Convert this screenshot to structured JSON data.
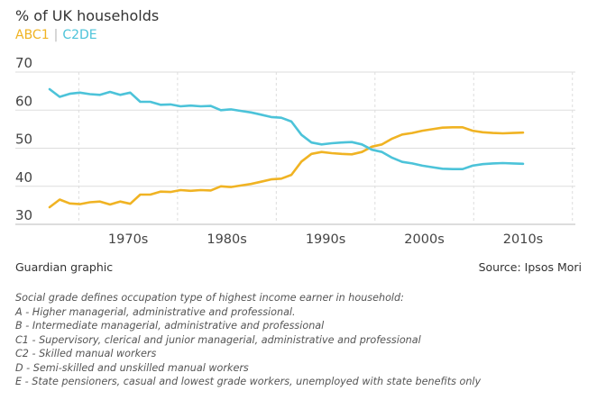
{
  "chart_data": {
    "type": "line",
    "title": "% of UK households",
    "xlabel": "",
    "ylabel": "",
    "ylim": [
      30,
      70
    ],
    "xlim": [
      1963,
      2015
    ],
    "yticks": [
      30,
      40,
      50,
      60,
      70
    ],
    "xticks": [
      {
        "label": "1970s",
        "value": 1971.8
      },
      {
        "label": "1980s",
        "value": 1981.6
      },
      {
        "label": "1990s",
        "value": 1991.4
      },
      {
        "label": "2000s",
        "value": 2001.2
      },
      {
        "label": "2010s",
        "value": 2011.0
      }
    ],
    "x_separators": [
      1966.9,
      1976.7,
      1986.5,
      1996.3,
      2006.1,
      2015.9
    ],
    "grid": true,
    "legend_placement": "top-left",
    "series": [
      {
        "name": "ABC1",
        "color": "#f0b323",
        "x": [
          1964,
          1965,
          1966,
          1967,
          1968,
          1969,
          1970,
          1971,
          1972,
          1973,
          1974,
          1975,
          1976,
          1977,
          1978,
          1979,
          1980,
          1981,
          1982,
          1983,
          1984,
          1985,
          1986,
          1987,
          1988,
          1989,
          1990,
          1991,
          1992,
          1993,
          1994,
          1995,
          1996,
          1997,
          1998,
          1999,
          2000,
          2001,
          2002,
          2003,
          2004,
          2005,
          2006,
          2007,
          2008,
          2009,
          2010,
          2011
        ],
        "y": [
          34.5,
          36.5,
          35.5,
          35.3,
          35.8,
          36.0,
          35.2,
          36.0,
          35.4,
          37.8,
          37.8,
          38.6,
          38.5,
          39.0,
          38.8,
          39.0,
          38.9,
          40.0,
          39.8,
          40.2,
          40.6,
          41.2,
          41.8,
          42.0,
          43.0,
          46.5,
          48.5,
          49.0,
          48.7,
          48.5,
          48.4,
          49.0,
          50.4,
          51.0,
          52.5,
          53.6,
          54.0,
          54.6,
          55.0,
          55.4,
          55.5,
          55.5,
          54.6,
          54.2,
          54.0,
          53.9,
          54.0,
          54.1
        ]
      },
      {
        "name": "C2DE",
        "color": "#4cc3d9",
        "x": [
          1964,
          1965,
          1966,
          1967,
          1968,
          1969,
          1970,
          1971,
          1972,
          1973,
          1974,
          1975,
          1976,
          1977,
          1978,
          1979,
          1980,
          1981,
          1982,
          1983,
          1984,
          1985,
          1986,
          1987,
          1988,
          1989,
          1990,
          1991,
          1992,
          1993,
          1994,
          1995,
          1996,
          1997,
          1998,
          1999,
          2000,
          2001,
          2002,
          2003,
          2004,
          2005,
          2006,
          2007,
          2008,
          2009,
          2010,
          2011
        ],
        "y": [
          65.5,
          63.5,
          64.3,
          64.6,
          64.2,
          64.0,
          64.8,
          64.0,
          64.6,
          62.2,
          62.2,
          61.4,
          61.5,
          61.0,
          61.2,
          61.0,
          61.1,
          60.0,
          60.2,
          59.8,
          59.4,
          58.8,
          58.2,
          58.0,
          57.0,
          53.5,
          51.5,
          51.0,
          51.3,
          51.5,
          51.6,
          51.0,
          49.6,
          49.0,
          47.5,
          46.4,
          46.0,
          45.4,
          45.0,
          44.6,
          44.5,
          44.5,
          45.4,
          45.8,
          46.0,
          46.1,
          46.0,
          45.9
        ]
      }
    ]
  },
  "legend": {
    "s0": "ABC1",
    "separator": "|",
    "s1": "C2DE"
  },
  "footer": {
    "credit": "Guardian graphic",
    "source": "Source: Ipsos Mori"
  },
  "notes": [
    "Social grade defines occupation type of highest income earner in household:",
    "A - Higher managerial, administrative and professional.",
    "B - Intermediate managerial, administrative and professional",
    "C1 - Supervisory, clerical and junior managerial, administrative and professional",
    "C2 - Skilled manual workers",
    "D - Semi-skilled and unskilled manual workers",
    "E - State pensioners, casual and lowest grade workers, unemployed with state benefits only"
  ]
}
